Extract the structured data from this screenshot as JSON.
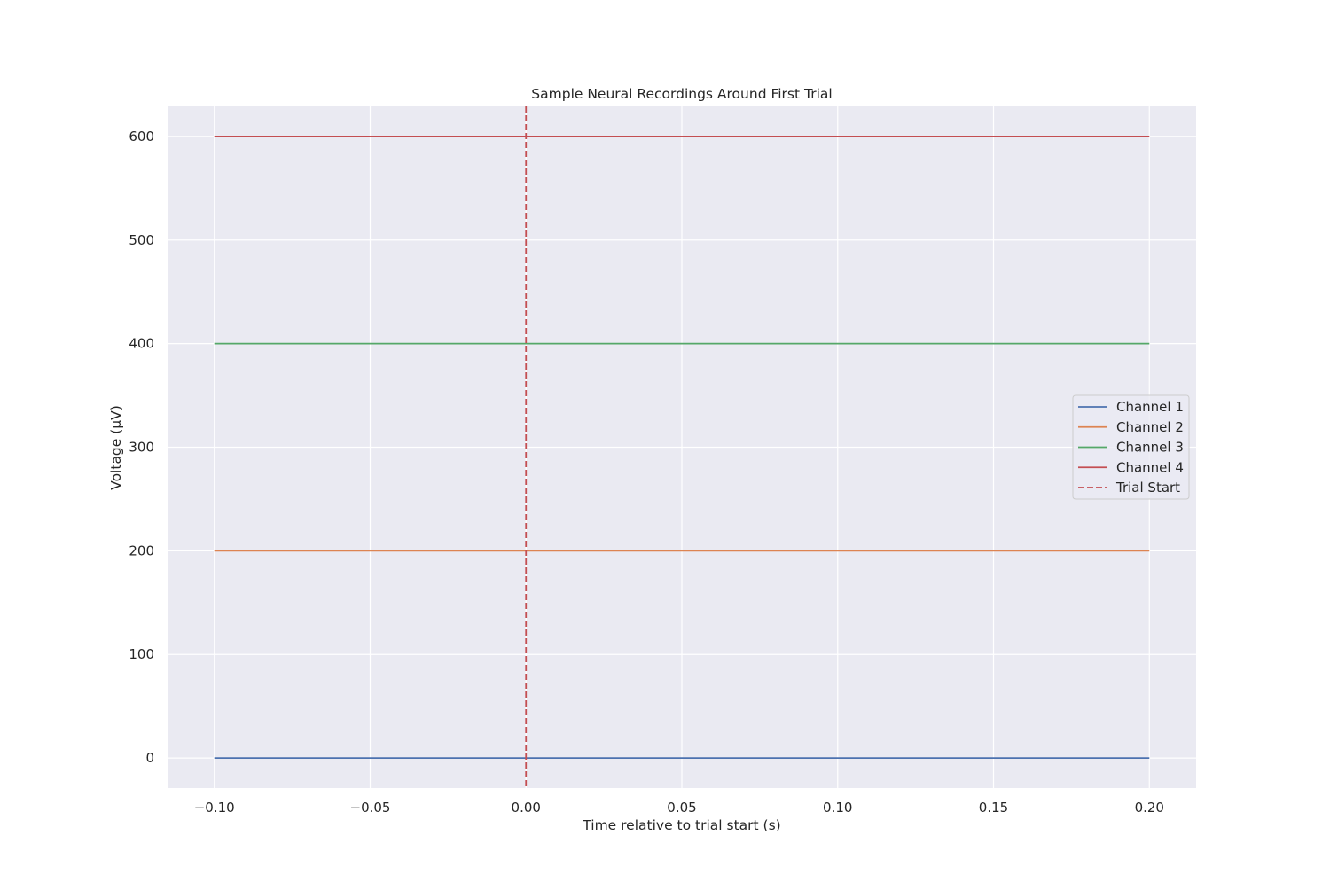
{
  "chart_data": {
    "type": "line",
    "title": "Sample Neural Recordings Around First Trial",
    "xlabel": "Time relative to trial start (s)",
    "ylabel": "Voltage (μV)",
    "xlim": [
      -0.115,
      0.215
    ],
    "ylim": [
      -29,
      629
    ],
    "xticks": [
      -0.1,
      -0.05,
      0.0,
      0.05,
      0.1,
      0.15,
      0.2
    ],
    "xtick_labels": [
      "−0.10",
      "−0.05",
      "0.00",
      "0.05",
      "0.10",
      "0.15",
      "0.20"
    ],
    "yticks": [
      0,
      100,
      200,
      300,
      400,
      500,
      600
    ],
    "ytick_labels": [
      "0",
      "100",
      "200",
      "300",
      "400",
      "500",
      "600"
    ],
    "grid": true,
    "legend_position": "center-right",
    "series": [
      {
        "name": "Channel 1",
        "color": "#4c72b0",
        "x": [
          -0.1,
          0.2
        ],
        "y": [
          0,
          0
        ]
      },
      {
        "name": "Channel 2",
        "color": "#dd8452",
        "x": [
          -0.1,
          0.2
        ],
        "y": [
          200,
          200
        ]
      },
      {
        "name": "Channel 3",
        "color": "#55a868",
        "x": [
          -0.1,
          0.2
        ],
        "y": [
          400,
          400
        ]
      },
      {
        "name": "Channel 4",
        "color": "#c44e52",
        "x": [
          -0.1,
          0.2
        ],
        "y": [
          600,
          600
        ]
      }
    ],
    "vlines": [
      {
        "name": "Trial Start",
        "x": 0.0,
        "color": "#c44e52",
        "style": "dashed"
      }
    ]
  },
  "colors": {
    "plot_background": "#eaeaf2",
    "grid": "#ffffff",
    "text": "#262626"
  }
}
